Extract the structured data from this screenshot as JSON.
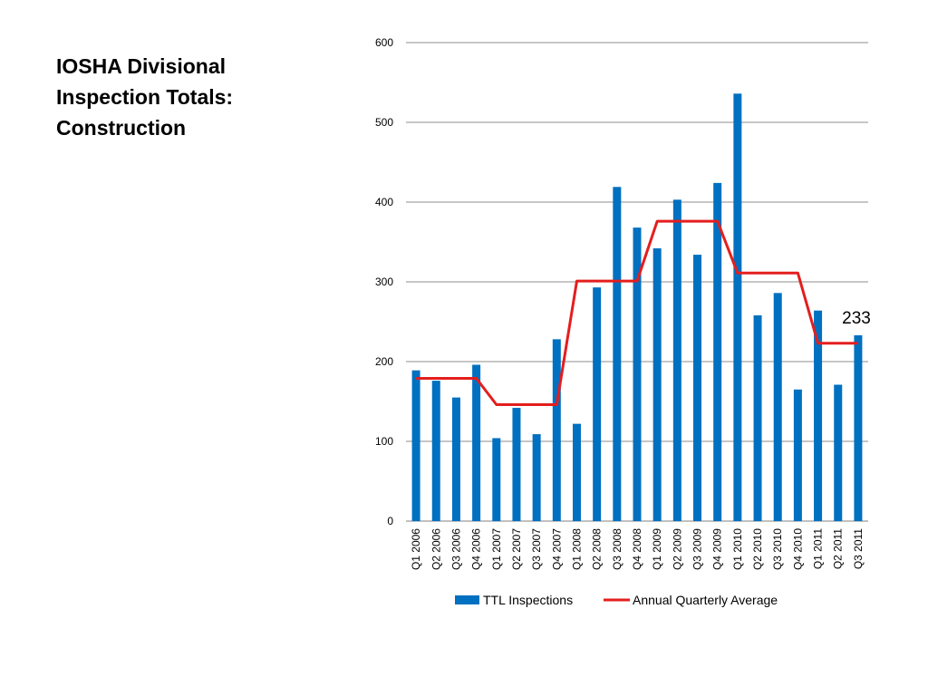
{
  "title_lines": [
    "IOSHA Divisional",
    "Inspection Totals:",
    "Construction"
  ],
  "chart_data": {
    "type": "bar",
    "categories": [
      "Q1 2006",
      "Q2 2006",
      "Q3 2006",
      "Q4 2006",
      "Q1 2007",
      "Q2 2007",
      "Q3 2007",
      "Q4 2007",
      "Q1 2008",
      "Q2 2008",
      "Q3 2008",
      "Q4 2008",
      "Q1 2009",
      "Q2 2009",
      "Q3 2009",
      "Q4 2009",
      "Q1 2010",
      "Q2 2010",
      "Q3 2010",
      "Q4 2010",
      "Q1 2011",
      "Q2 2011",
      "Q3 2011"
    ],
    "series": [
      {
        "name": "TTL Inspections",
        "type": "bar",
        "color": "#0070C0",
        "values": [
          189,
          176,
          155,
          196,
          104,
          142,
          109,
          228,
          122,
          293,
          419,
          368,
          342,
          403,
          334,
          424,
          536,
          258,
          286,
          165,
          264,
          171,
          233
        ]
      },
      {
        "name": "Annual Quarterly Average",
        "type": "line",
        "color": "#E41E1E",
        "values": [
          179,
          179,
          179,
          179,
          146,
          146,
          146,
          146,
          301,
          301,
          301,
          301,
          376,
          376,
          376,
          376,
          311,
          311,
          311,
          311,
          223,
          223,
          223
        ]
      }
    ],
    "ylim": [
      0,
      600
    ],
    "yticks": [
      0,
      100,
      200,
      300,
      400,
      500,
      600
    ],
    "grid": true,
    "legend_position": "bottom",
    "annotation": "233"
  }
}
